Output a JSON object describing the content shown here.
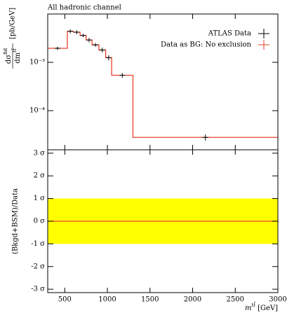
{
  "chart_data": {
    "type": "histogram",
    "title": "All hadronic channel",
    "bins": [
      300,
      530,
      600,
      680,
      750,
      820,
      900,
      980,
      1050,
      1300,
      3000
    ],
    "series": [
      {
        "name": "ATLAS Data",
        "color": "#000000",
        "values": [
          0.00195,
          0.0044,
          0.0042,
          0.0036,
          0.0029,
          0.0023,
          0.0018,
          0.00125,
          0.00054,
          2.8e-05
        ],
        "errors": [
          0.00015,
          0.0004,
          0.0004,
          0.0003,
          0.0003,
          0.0002,
          0.0002,
          0.00015,
          6e-05,
          4e-06
        ]
      },
      {
        "name": "Data as BG: No exclusion",
        "color": "#e8412b",
        "values": [
          0.00195,
          0.0044,
          0.0042,
          0.0036,
          0.0029,
          0.0023,
          0.0018,
          0.00125,
          0.00054,
          2.8e-05
        ]
      }
    ],
    "xlim": [
      300,
      3000
    ],
    "xticks": [
      500,
      1000,
      1500,
      2000,
      2500,
      3000
    ],
    "ylim": [
      1.55e-05,
      0.01
    ],
    "log_y": true,
    "yticks": [
      {
        "value": 0.001,
        "label": "10⁻³"
      },
      {
        "value": 0.0001,
        "label": "10⁻⁴"
      }
    ],
    "ylabel": {
      "num": "dσ",
      "num_sup": "fid",
      "den": "dm",
      "den_sup": "tt̄",
      "unit": "[pb/GeV]"
    },
    "xlabel": {
      "symbol": "m",
      "sup": "tt̄",
      "unit": "[GeV]"
    },
    "legend": "upper right",
    "ratio": {
      "ylabel": "(Bkgd+BSM)/Data",
      "ylim": [
        -3.15,
        3.15
      ],
      "yticks": [
        {
          "value": 3,
          "label": "3 σ"
        },
        {
          "value": 2,
          "label": "2 σ"
        },
        {
          "value": 1,
          "label": "1 σ"
        },
        {
          "value": 0,
          "label": "0 σ"
        },
        {
          "value": -1,
          "label": "-1 σ"
        },
        {
          "value": -2,
          "label": "-2 σ"
        },
        {
          "value": -3,
          "label": "-3 σ"
        }
      ],
      "band": [
        -1,
        1
      ],
      "band_color": "#ffff00",
      "values": [
        0,
        0,
        0,
        0,
        0,
        0,
        0,
        0,
        0,
        0
      ],
      "color": "#e8412b"
    }
  }
}
